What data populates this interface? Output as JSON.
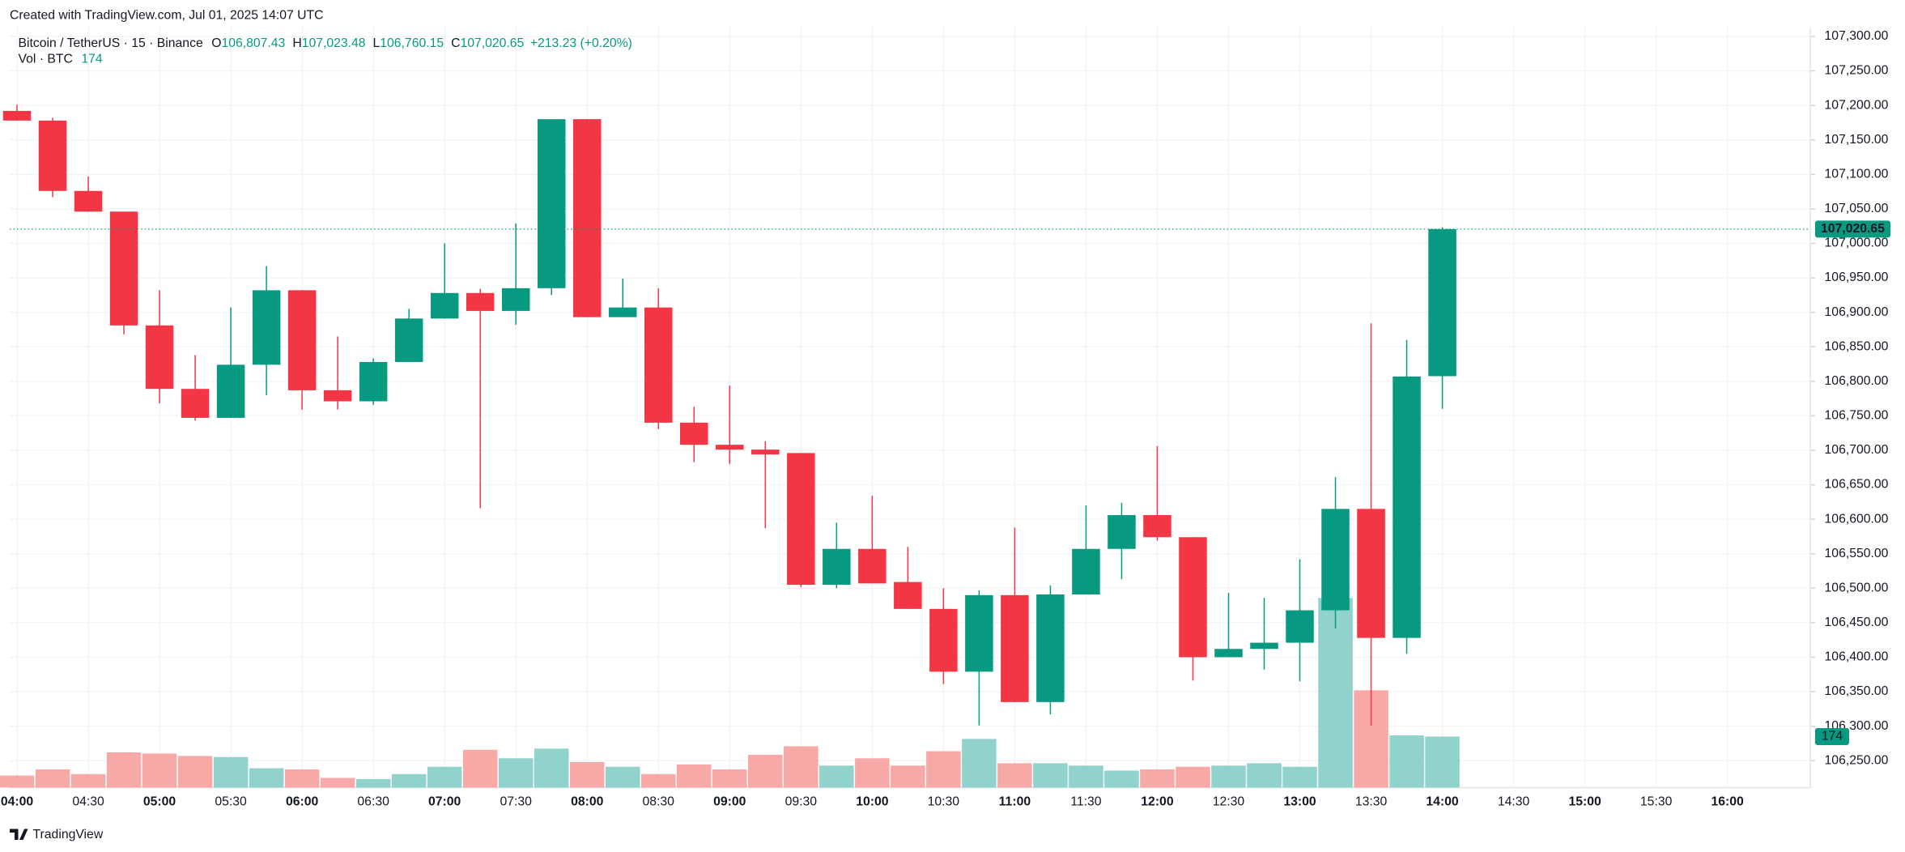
{
  "chart_data": {
    "type": "candlestick",
    "created_note": "Created with TradingView.com, Jul 01, 2025 14:07 UTC",
    "title": "Bitcoin / TetherUS · 15 · Binance",
    "ohlc_names": [
      "O",
      "H",
      "L",
      "C"
    ],
    "ohlc_labels": [
      "106,807.43",
      "107,023.48",
      "106,760.15",
      "107,020.65"
    ],
    "change": "+213.23 (+0.20%)",
    "volume_title": "Vol · BTC",
    "brand": "TradingView",
    "up_color": "#089981",
    "down_color": "#f23645",
    "volume_up_color": "#92d2cc",
    "volume_down_color": "#f7a9a7",
    "grid": true,
    "open": [
      107192,
      107178,
      107076,
      107046,
      106881,
      106789,
      106747,
      106824,
      106932,
      106787,
      106771,
      106828,
      106891,
      106928,
      106902,
      106935,
      107180,
      106893,
      106907,
      106740,
      106708,
      106701,
      106696,
      106505,
      106557,
      106509,
      106470,
      106379,
      106490,
      106335,
      106491,
      106557,
      106606,
      106574,
      106400,
      106412,
      106421,
      106468,
      106615,
      106428,
      106807.43
    ],
    "high": [
      107201,
      107182,
      107097,
      107046,
      106932,
      106838,
      106907,
      106967,
      106932,
      106865,
      106833,
      106905,
      107000,
      106934,
      107029,
      107180,
      107180,
      106949,
      106935,
      106763,
      106794,
      106713,
      106696,
      106595,
      106634,
      106560,
      106500,
      106497,
      106588,
      106504,
      106620,
      106624,
      106706,
      106574,
      106493,
      106486,
      106542,
      106661,
      106884,
      106860,
      107023.48
    ],
    "low": [
      107178,
      107067,
      107046,
      106868,
      106768,
      106743,
      106747,
      106780,
      106759,
      106759,
      106766,
      106828,
      106891,
      106616,
      106882,
      106925,
      106893,
      106893,
      106731,
      106683,
      106680,
      106587,
      106502,
      106500,
      106507,
      106470,
      106361,
      106301,
      106335,
      106317,
      106491,
      106513,
      106569,
      106366,
      106400,
      106382,
      106365,
      106442,
      106301,
      106405,
      106760.15
    ],
    "close": [
      107178,
      107076,
      107046,
      106881,
      106789,
      106747,
      106824,
      106932,
      106787,
      106771,
      106828,
      106891,
      106928,
      106902,
      106935,
      107180,
      106893,
      106907,
      106740,
      106708,
      106701,
      106694,
      106505,
      106557,
      106507,
      106470,
      106379,
      106490,
      106335,
      106491,
      106557,
      106606,
      106574,
      106400,
      106412,
      106421,
      106468,
      106615,
      106428,
      106807,
      107020.65
    ],
    "volume": [
      41,
      62,
      46,
      120,
      116,
      108,
      104,
      66,
      62,
      33,
      29,
      46,
      71,
      129,
      100,
      133,
      87,
      71,
      46,
      79,
      62,
      112,
      141,
      75,
      100,
      75,
      124,
      166,
      83,
      83,
      75,
      58,
      62,
      71,
      75,
      83,
      71,
      647,
      332,
      178,
      174
    ],
    "xticks": [
      "04:00",
      "04:30",
      "05:00",
      "05:30",
      "06:00",
      "06:30",
      "07:00",
      "07:30",
      "08:00",
      "08:30",
      "09:00",
      "09:30",
      "10:00",
      "10:30",
      "11:00",
      "11:30",
      "12:00",
      "12:30",
      "13:00",
      "13:30",
      "14:00",
      "14:30",
      "15:00",
      "15:30",
      "16:00"
    ],
    "ylim": [
      106211,
      107314
    ],
    "yticks": [
      {
        "value": 106250,
        "label": "106,250.00"
      },
      {
        "value": 106300,
        "label": "106,300.00"
      },
      {
        "value": 106350,
        "label": "106,350.00"
      },
      {
        "value": 106400,
        "label": "106,400.00"
      },
      {
        "value": 106450,
        "label": "106,450.00"
      },
      {
        "value": 106500,
        "label": "106,500.00"
      },
      {
        "value": 106550,
        "label": "106,550.00"
      },
      {
        "value": 106600,
        "label": "106,600.00"
      },
      {
        "value": 106650,
        "label": "106,650.00"
      },
      {
        "value": 106700,
        "label": "106,700.00"
      },
      {
        "value": 106750,
        "label": "106,750.00"
      },
      {
        "value": 106800,
        "label": "106,800.00"
      },
      {
        "value": 106850,
        "label": "106,850.00"
      },
      {
        "value": 106900,
        "label": "106,900.00"
      },
      {
        "value": 106950,
        "label": "106,950.00"
      },
      {
        "value": 107000,
        "label": "107,000.00"
      },
      {
        "value": 107050,
        "label": "107,050.00"
      },
      {
        "value": 107100,
        "label": "107,100.00"
      },
      {
        "value": 107150,
        "label": "107,150.00"
      },
      {
        "value": 107200,
        "label": "107,200.00"
      },
      {
        "value": 107250,
        "label": "107,250.00"
      },
      {
        "value": 107300,
        "label": "107,300.00"
      }
    ]
  }
}
